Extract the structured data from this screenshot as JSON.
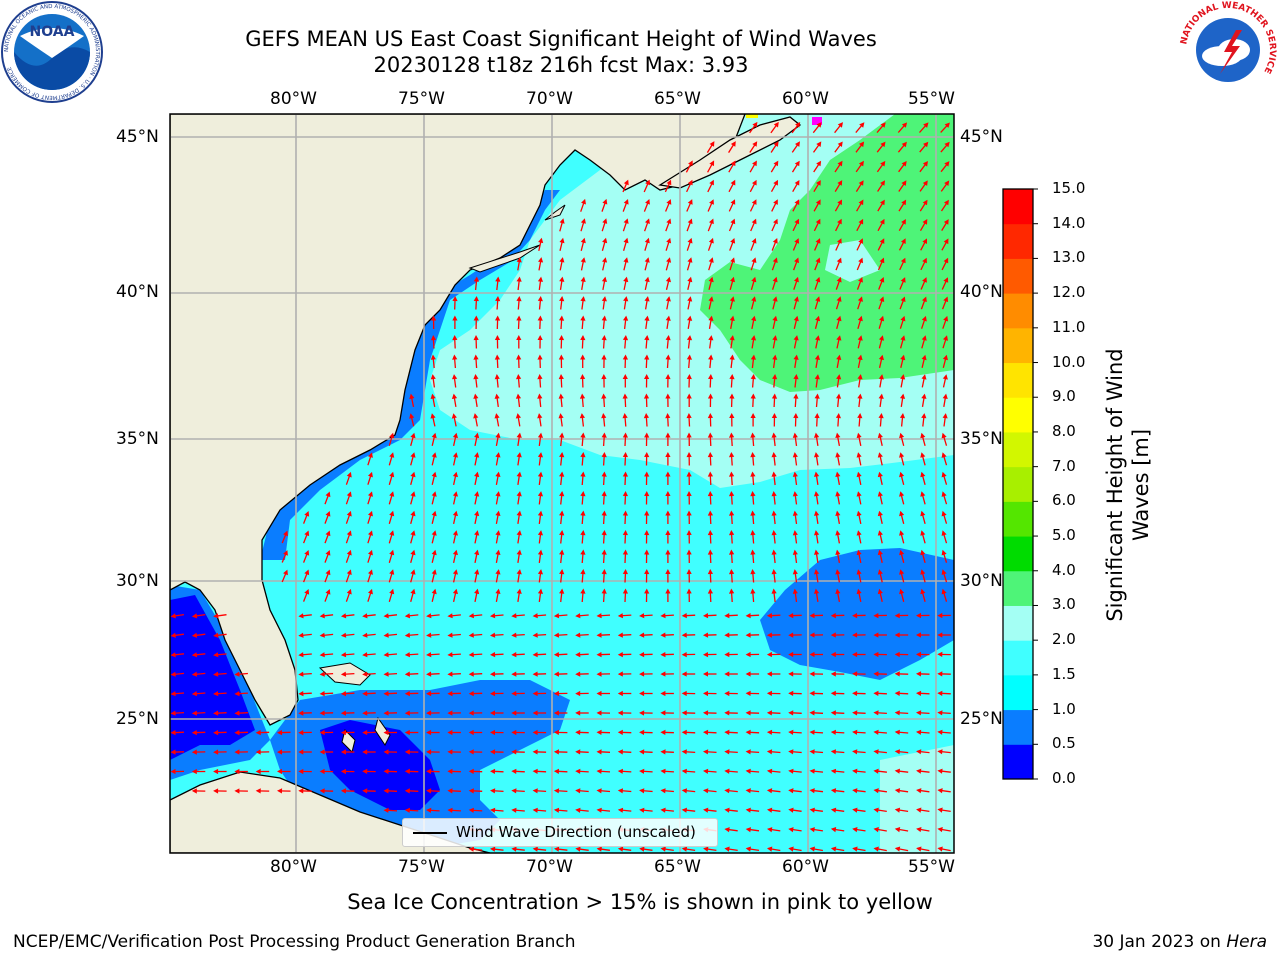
{
  "title": {
    "line1": "GEFS MEAN US East Coast Significant Height of Wind Waves",
    "line2": "20230128 t18z 216h fcst   Max: 3.93"
  },
  "map": {
    "lon_labels": [
      "80°W",
      "75°W",
      "70°W",
      "65°W",
      "60°W",
      "55°W"
    ],
    "lat_labels": [
      "45°N",
      "40°N",
      "35°N",
      "30°N",
      "25°N"
    ],
    "lon_range": [
      -85,
      -54.3
    ],
    "lat_range": [
      20.5,
      46
    ],
    "land_color": "#efeedc",
    "grid_color": "#b0b0b0",
    "arrow_color": "#ff0000",
    "legend_label": "Wind Wave Direction (unscaled)"
  },
  "colorbar": {
    "title_line1": "Significant Height of Wind",
    "title_line2": "Waves [m]",
    "levels": [
      "0.0",
      "0.5",
      "1.0",
      "1.5",
      "2.0",
      "3.0",
      "4.0",
      "5.0",
      "6.0",
      "7.0",
      "8.0",
      "9.0",
      "10.0",
      "11.0",
      "12.0",
      "13.0",
      "14.0",
      "15.0"
    ],
    "colors": [
      "#0000ff",
      "#0a7dff",
      "#00ffff",
      "#40ffff",
      "#a4fff4",
      "#4ef478",
      "#00dc00",
      "#54e600",
      "#a8ef00",
      "#d2f700",
      "#ffff00",
      "#ffe400",
      "#ffb400",
      "#ff8c00",
      "#ff5a00",
      "#ff2800",
      "#ff0000"
    ]
  },
  "note": "Sea Ice Concentration > 15% is shown in pink to yellow",
  "footer": {
    "credit": "NCEP/EMC/Verification Post Processing Product Generation Branch",
    "date_prefix": "30 Jan 2023 on",
    "machine": "Hera"
  },
  "logos": {
    "noaa_text": "NOAA",
    "noaa_ring": "NATIONAL OCEANIC AND ATMOSPHERIC ADMINISTRATION · U.S. DEPARTMENT OF COMMERCE",
    "nws_ring": "NATIONAL WEATHER SERVICE"
  }
}
